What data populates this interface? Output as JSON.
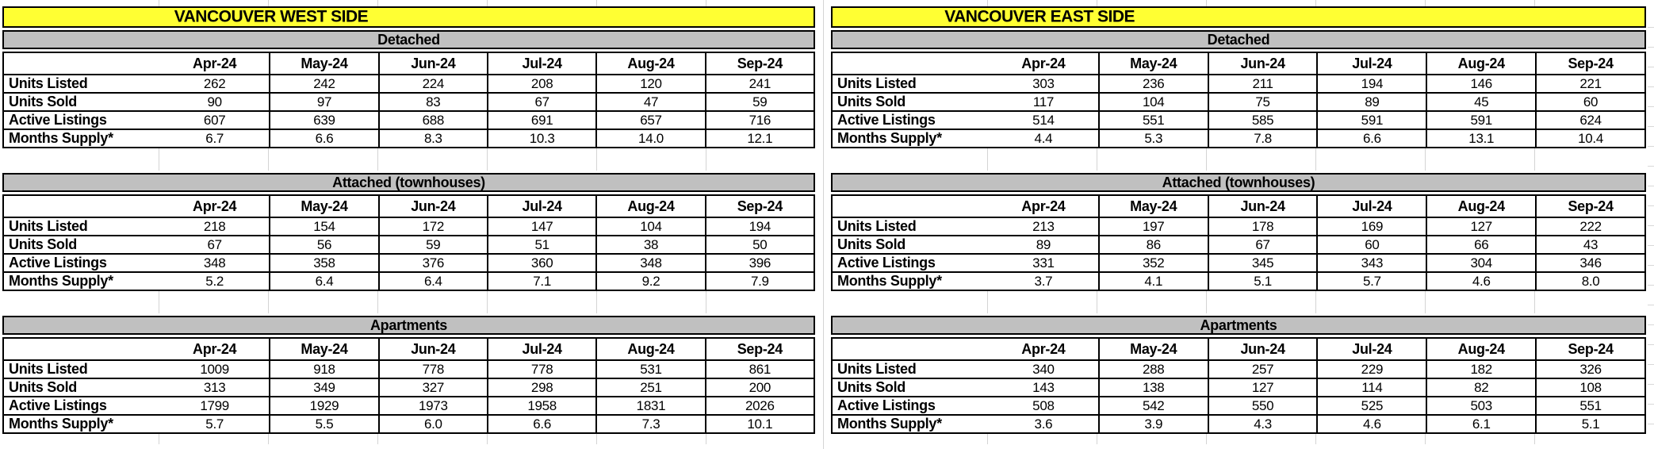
{
  "months": [
    "Apr-24",
    "May-24",
    "Jun-24",
    "Jul-24",
    "Aug-24",
    "Sep-24"
  ],
  "colors": {
    "title_bg": "#FFFF33",
    "band_bg": "#C0C0C0",
    "table_border": "#000000",
    "sheet_gridline": "#D4D4D4"
  },
  "regions": [
    {
      "title": "VANCOUVER WEST SIDE",
      "sections": [
        {
          "name": "Detached",
          "rows": [
            {
              "label": "Units Listed",
              "values": [
                "262",
                "242",
                "224",
                "208",
                "120",
                "241"
              ]
            },
            {
              "label": "Units Sold",
              "values": [
                "90",
                "97",
                "83",
                "67",
                "47",
                "59"
              ]
            },
            {
              "label": "Active Listings",
              "values": [
                "607",
                "639",
                "688",
                "691",
                "657",
                "716"
              ]
            },
            {
              "label": "Months Supply*",
              "values": [
                "6.7",
                "6.6",
                "8.3",
                "10.3",
                "14.0",
                "12.1"
              ]
            }
          ]
        },
        {
          "name": "Attached (townhouses)",
          "rows": [
            {
              "label": "Units Listed",
              "values": [
                "218",
                "154",
                "172",
                "147",
                "104",
                "194"
              ]
            },
            {
              "label": "Units Sold",
              "values": [
                "67",
                "56",
                "59",
                "51",
                "38",
                "50"
              ]
            },
            {
              "label": "Active Listings",
              "values": [
                "348",
                "358",
                "376",
                "360",
                "348",
                "396"
              ]
            },
            {
              "label": "Months Supply*",
              "values": [
                "5.2",
                "6.4",
                "6.4",
                "7.1",
                "9.2",
                "7.9"
              ]
            }
          ]
        },
        {
          "name": "Apartments",
          "rows": [
            {
              "label": "Units Listed",
              "values": [
                "1009",
                "918",
                "778",
                "778",
                "531",
                "861"
              ]
            },
            {
              "label": "Units Sold",
              "values": [
                "313",
                "349",
                "327",
                "298",
                "251",
                "200"
              ]
            },
            {
              "label": "Active Listings",
              "values": [
                "1799",
                "1929",
                "1973",
                "1958",
                "1831",
                "2026"
              ]
            },
            {
              "label": "Months Supply*",
              "values": [
                "5.7",
                "5.5",
                "6.0",
                "6.6",
                "7.3",
                "10.1"
              ]
            }
          ]
        }
      ]
    },
    {
      "title": "VANCOUVER EAST SIDE",
      "sections": [
        {
          "name": "Detached",
          "rows": [
            {
              "label": "Units Listed",
              "values": [
                "303",
                "236",
                "211",
                "194",
                "146",
                "221"
              ]
            },
            {
              "label": "Units Sold",
              "values": [
                "117",
                "104",
                "75",
                "89",
                "45",
                "60"
              ]
            },
            {
              "label": "Active Listings",
              "values": [
                "514",
                "551",
                "585",
                "591",
                "591",
                "624"
              ]
            },
            {
              "label": "Months Supply*",
              "values": [
                "4.4",
                "5.3",
                "7.8",
                "6.6",
                "13.1",
                "10.4"
              ]
            }
          ]
        },
        {
          "name": "Attached (townhouses)",
          "rows": [
            {
              "label": "Units Listed",
              "values": [
                "213",
                "197",
                "178",
                "169",
                "127",
                "222"
              ]
            },
            {
              "label": "Units Sold",
              "values": [
                "89",
                "86",
                "67",
                "60",
                "66",
                "43"
              ]
            },
            {
              "label": "Active Listings",
              "values": [
                "331",
                "352",
                "345",
                "343",
                "304",
                "346"
              ]
            },
            {
              "label": "Months Supply*",
              "values": [
                "3.7",
                "4.1",
                "5.1",
                "5.7",
                "4.6",
                "8.0"
              ]
            }
          ]
        },
        {
          "name": "Apartments",
          "rows": [
            {
              "label": "Units Listed",
              "values": [
                "340",
                "288",
                "257",
                "229",
                "182",
                "326"
              ]
            },
            {
              "label": "Units Sold",
              "values": [
                "143",
                "138",
                "127",
                "114",
                "82",
                "108"
              ]
            },
            {
              "label": "Active Listings",
              "values": [
                "508",
                "542",
                "550",
                "525",
                "503",
                "551"
              ]
            },
            {
              "label": "Months Supply*",
              "values": [
                "3.6",
                "3.9",
                "4.3",
                "4.6",
                "6.1",
                "5.1"
              ]
            }
          ]
        }
      ]
    }
  ]
}
